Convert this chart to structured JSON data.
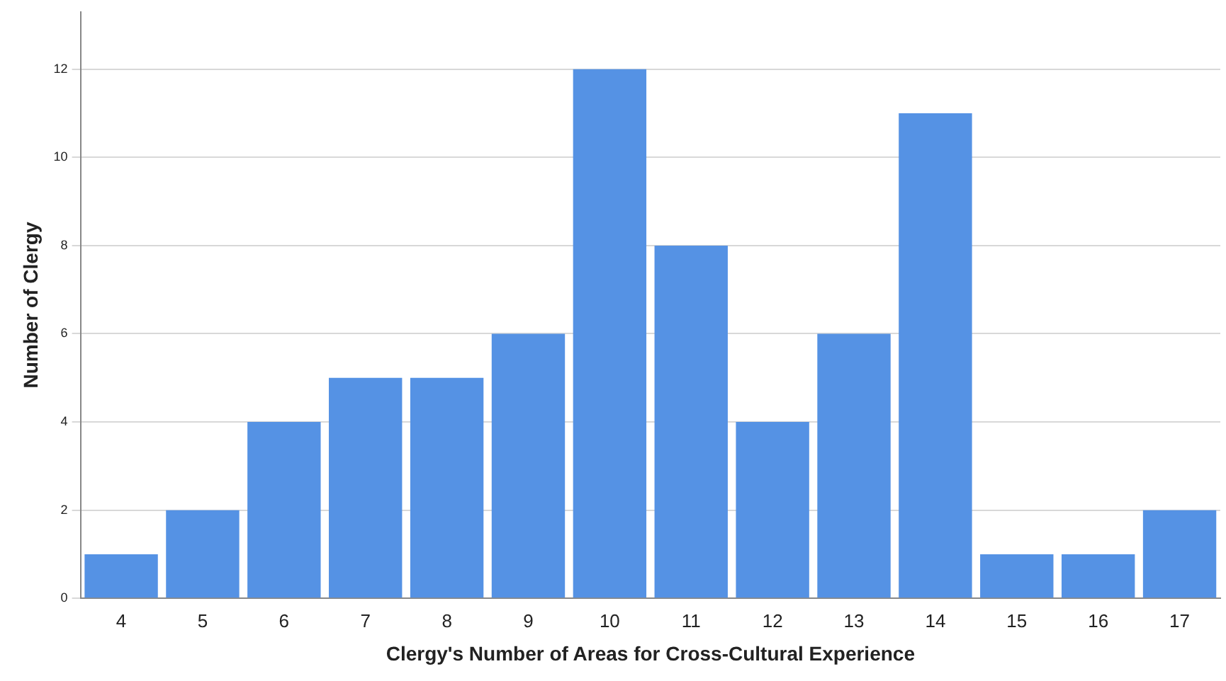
{
  "chart_data": {
    "type": "bar",
    "xlabel": "Clergy's Number of Areas for Cross-Cultural Experience",
    "ylabel": "Number of Clergy",
    "categories": [
      "4",
      "5",
      "6",
      "7",
      "8",
      "9",
      "10",
      "11",
      "12",
      "13",
      "14",
      "15",
      "16",
      "17"
    ],
    "values": [
      1,
      2,
      4,
      5,
      5,
      6,
      12,
      8,
      4,
      6,
      11,
      1,
      1,
      2
    ],
    "color": "#5592e4",
    "ylim": [
      0,
      13.3
    ],
    "yticks": [
      0,
      2,
      4,
      6,
      8,
      10,
      12
    ],
    "grid": "y",
    "legend": false
  }
}
